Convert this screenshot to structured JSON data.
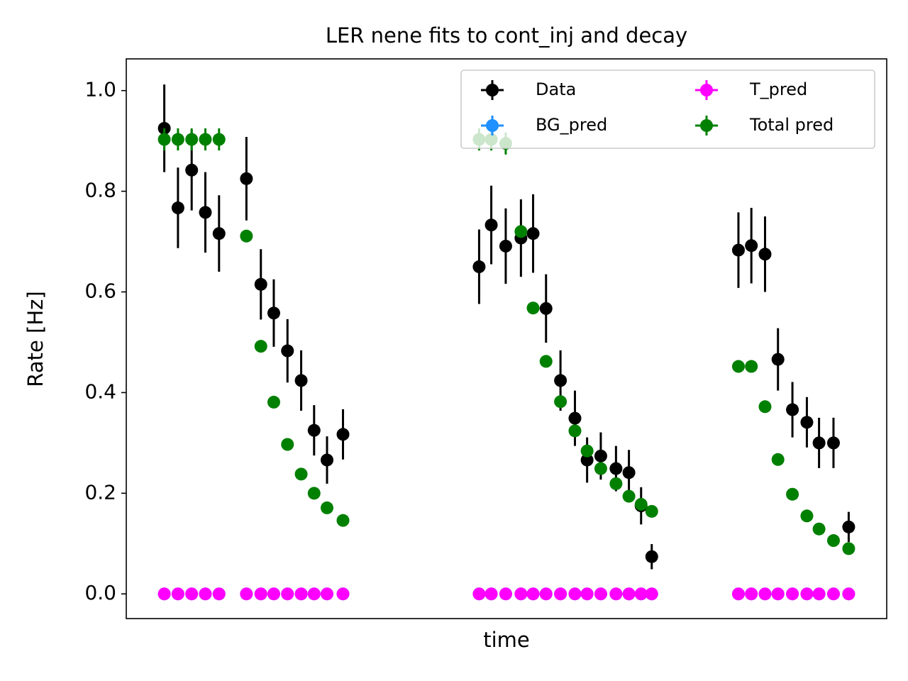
{
  "chart_data": {
    "type": "errorbar",
    "title": "LER nene fits to cont_inj and decay",
    "xlabel": "time",
    "ylabel": "Rate [Hz]",
    "x": [
      5.0,
      6.8,
      8.6,
      10.4,
      12.2,
      15.8,
      17.7,
      19.4,
      21.2,
      23.0,
      24.7,
      26.4,
      28.5,
      46.4,
      48.0,
      49.9,
      51.9,
      53.5,
      55.2,
      57.1,
      59.0,
      60.6,
      62.4,
      64.4,
      66.1,
      67.7,
      69.1,
      80.5,
      82.2,
      84.0,
      85.7,
      87.6,
      89.5,
      91.1,
      93.0,
      95.0
    ],
    "xlim": [
      0,
      100
    ],
    "ylim": [
      -0.049,
      1.063
    ],
    "yticks": [
      {
        "value": 0,
        "label": "0.0"
      },
      0.2,
      0.4,
      0.6,
      0.8,
      {
        "value": 1,
        "label": "1.0"
      }
    ],
    "legend": "upper right",
    "series": [
      {
        "name": "Data",
        "color": "#000000",
        "values": [
          0.925,
          0.767,
          0.842,
          0.758,
          0.716,
          0.825,
          0.615,
          0.558,
          0.483,
          0.424,
          0.325,
          0.266,
          0.317,
          0.65,
          0.733,
          0.691,
          0.707,
          0.716,
          0.567,
          0.424,
          0.349,
          0.266,
          0.274,
          0.249,
          0.241,
          0.175,
          0.074,
          0.683,
          0.692,
          0.675,
          0.466,
          0.366,
          0.341,
          0.3,
          0.3,
          0.133
        ],
        "errors": [
          0.087,
          0.08,
          0.08,
          0.08,
          0.076,
          0.083,
          0.07,
          0.067,
          0.063,
          0.06,
          0.05,
          0.047,
          0.05,
          0.074,
          0.078,
          0.075,
          0.077,
          0.078,
          0.068,
          0.06,
          0.055,
          0.045,
          0.047,
          0.045,
          0.045,
          0.037,
          0.025,
          0.075,
          0.075,
          0.075,
          0.062,
          0.055,
          0.05,
          0.05,
          0.05,
          0.03
        ]
      },
      {
        "name": "BG_pred",
        "color": "#1e90ff",
        "values": [
          0,
          0,
          0,
          0,
          0,
          0,
          0,
          0,
          0,
          0,
          0,
          0,
          0,
          0,
          0,
          0,
          0,
          0,
          0,
          0,
          0,
          0,
          0,
          0,
          0,
          0,
          0,
          0,
          0,
          0,
          0,
          0,
          0,
          0,
          0,
          0
        ]
      },
      {
        "name": "T_pred",
        "color": "#ff00ff",
        "values": [
          0,
          0,
          0,
          0,
          0,
          0,
          0,
          0,
          0,
          0,
          0,
          0,
          0,
          0,
          0,
          0,
          0,
          0,
          0,
          0,
          0,
          0,
          0,
          0,
          0,
          0,
          0,
          0,
          0,
          0,
          0,
          0,
          0,
          0,
          0,
          0
        ]
      },
      {
        "name": "Total pred",
        "color": "#008000",
        "values": [
          0.903,
          0.903,
          0.903,
          0.903,
          0.903,
          0.711,
          0.492,
          0.381,
          0.297,
          0.238,
          0.2,
          0.171,
          0.146,
          0.903,
          0.903,
          0.895,
          0.72,
          0.568,
          0.462,
          0.382,
          0.324,
          0.284,
          0.249,
          0.219,
          0.194,
          0.178,
          0.164,
          0.452,
          0.452,
          0.372,
          0.267,
          0.198,
          0.155,
          0.129,
          0.106,
          0.09
        ],
        "errors": [
          0.022,
          0.022,
          0.022,
          0.022,
          0.022,
          0.012,
          null,
          null,
          null,
          null,
          null,
          null,
          null,
          0.022,
          0.022,
          0.022,
          0.012,
          null,
          null,
          null,
          null,
          null,
          null,
          null,
          null,
          null,
          null,
          null,
          null,
          null,
          null,
          null,
          null,
          null,
          null,
          null
        ]
      }
    ]
  }
}
